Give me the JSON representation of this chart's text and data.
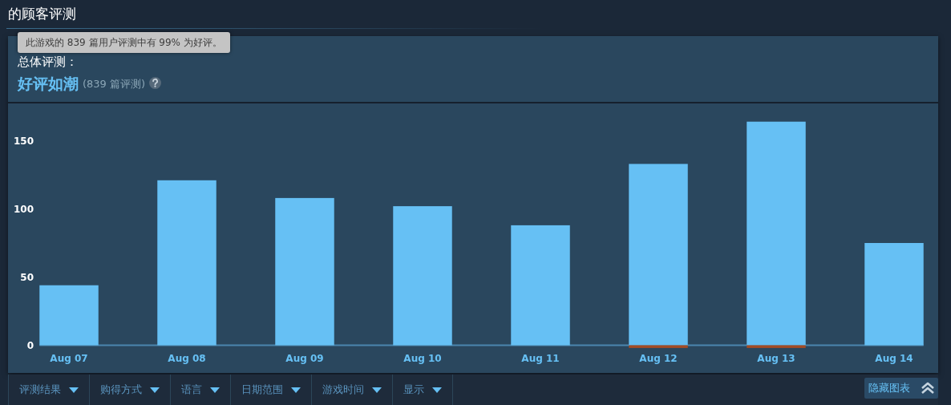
{
  "chart_data": {
    "type": "bar",
    "title": "的顾客评测",
    "annotations": [
      "此游戏的 839 篇用户评测中有 99% 为好评。",
      "总体评测：",
      "好评如潮",
      "(839 篇评测)",
      "评测结果",
      "购得方式",
      "语言",
      "日期范围",
      "游戏时间",
      "显示",
      "隐藏图表"
    ],
    "categories": [
      "Aug 07",
      "Aug 08",
      "Aug 09",
      "Aug 10",
      "Aug 11",
      "Aug 12",
      "Aug 13",
      "Aug 14"
    ],
    "series": [
      {
        "color": "#66c0f4",
        "values": [
          44,
          121,
          108,
          102,
          88,
          133,
          164,
          75
        ]
      },
      {
        "color": "#a34c25",
        "values": [
          0,
          0,
          0,
          0,
          0,
          -2,
          -2,
          0
        ]
      }
    ],
    "stacked": true,
    "ylim": [
      -5,
      176
    ],
    "yticks": [
      0,
      50,
      100,
      150
    ]
  }
}
